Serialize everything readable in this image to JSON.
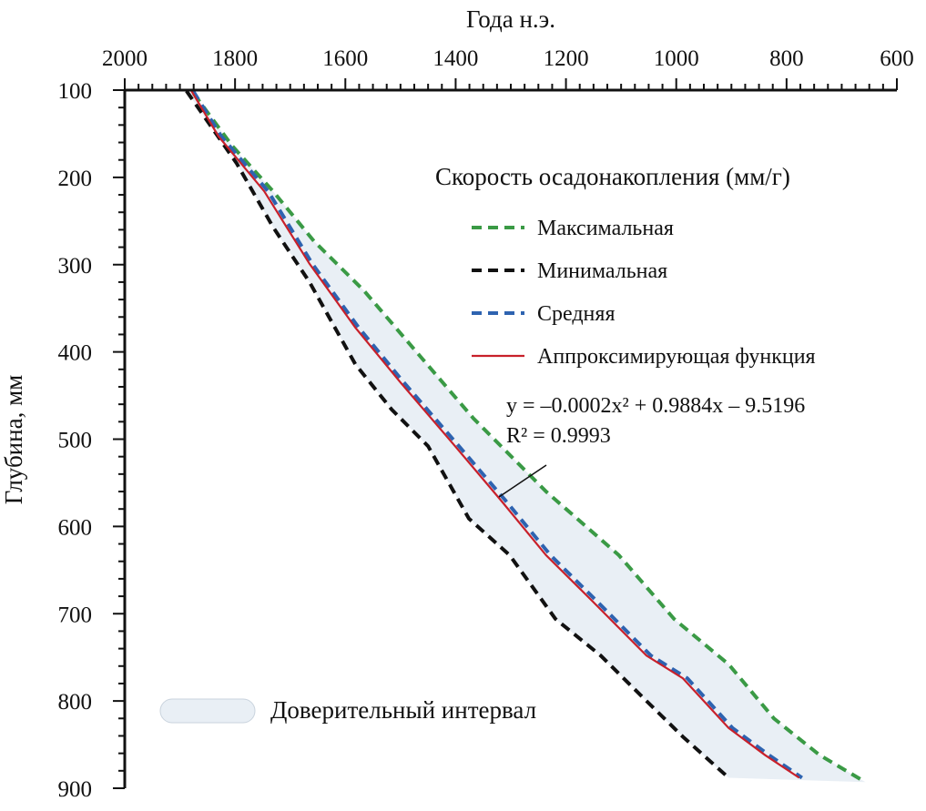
{
  "chart_data": {
    "type": "line",
    "xlabel": "Года н.э.",
    "ylabel": "Глубина, мм",
    "xlim": [
      2000,
      600
    ],
    "ylim": [
      100,
      900
    ],
    "x_ticks": [
      "2000",
      "1800",
      "1600",
      "1400",
      "1200",
      "1000",
      "800",
      "600"
    ],
    "y_ticks": [
      "100",
      "200",
      "300",
      "400",
      "500",
      "600",
      "700",
      "800",
      "900"
    ],
    "legend_title": "Скорость осадонакопления (мм/г)",
    "legend_position": "top-right",
    "series": [
      {
        "name": "Максимальная",
        "color": "#3a9a45",
        "style": "dashed",
        "points": [
          [
            1875,
            104
          ],
          [
            1805,
            164
          ],
          [
            1731,
            216
          ],
          [
            1657,
            273
          ],
          [
            1566,
            330
          ],
          [
            1467,
            403
          ],
          [
            1368,
            476
          ],
          [
            1236,
            560
          ],
          [
            1104,
            633
          ],
          [
            1004,
            706
          ],
          [
            905,
            758
          ],
          [
            823,
            820
          ],
          [
            740,
            862
          ],
          [
            657,
            893
          ]
        ]
      },
      {
        "name": "Минимальная",
        "color": "#111111",
        "style": "dashed",
        "points": [
          [
            1888,
            101
          ],
          [
            1797,
            184
          ],
          [
            1731,
            257
          ],
          [
            1665,
            320
          ],
          [
            1582,
            414
          ],
          [
            1516,
            466
          ],
          [
            1450,
            508
          ],
          [
            1376,
            591
          ],
          [
            1302,
            633
          ],
          [
            1219,
            706
          ],
          [
            1137,
            748
          ],
          [
            1054,
            800
          ],
          [
            988,
            841
          ],
          [
            905,
            888
          ]
        ]
      },
      {
        "name": "Средняя",
        "color": "#2e63b0",
        "style": "dashed",
        "points": [
          [
            1876,
            101
          ],
          [
            1825,
            153
          ],
          [
            1740,
            216
          ],
          [
            1660,
            299
          ],
          [
            1576,
            372
          ],
          [
            1494,
            435
          ],
          [
            1394,
            508
          ],
          [
            1310,
            570
          ],
          [
            1228,
            633
          ],
          [
            1145,
            685
          ],
          [
            1046,
            748
          ],
          [
            980,
            774
          ],
          [
            898,
            831
          ],
          [
            832,
            862
          ],
          [
            772,
            888
          ]
        ]
      },
      {
        "name": "Аппроксимирующая функция",
        "color": "#c8202a",
        "style": "solid",
        "points": [
          [
            1879,
            101
          ],
          [
            1830,
            153
          ],
          [
            1747,
            216
          ],
          [
            1665,
            299
          ],
          [
            1582,
            372
          ],
          [
            1500,
            435
          ],
          [
            1401,
            508
          ],
          [
            1318,
            570
          ],
          [
            1236,
            633
          ],
          [
            1153,
            685
          ],
          [
            1054,
            748
          ],
          [
            988,
            774
          ],
          [
            905,
            831
          ],
          [
            839,
            862
          ],
          [
            777,
            888
          ]
        ]
      }
    ],
    "annotations": {
      "equation": "y = –0.0002x² + 0.9884x – 9.5196",
      "r2": "R² = 0.9993",
      "confidence_label": "Доверительный интервал"
    },
    "band_color": "#e9eff5"
  }
}
